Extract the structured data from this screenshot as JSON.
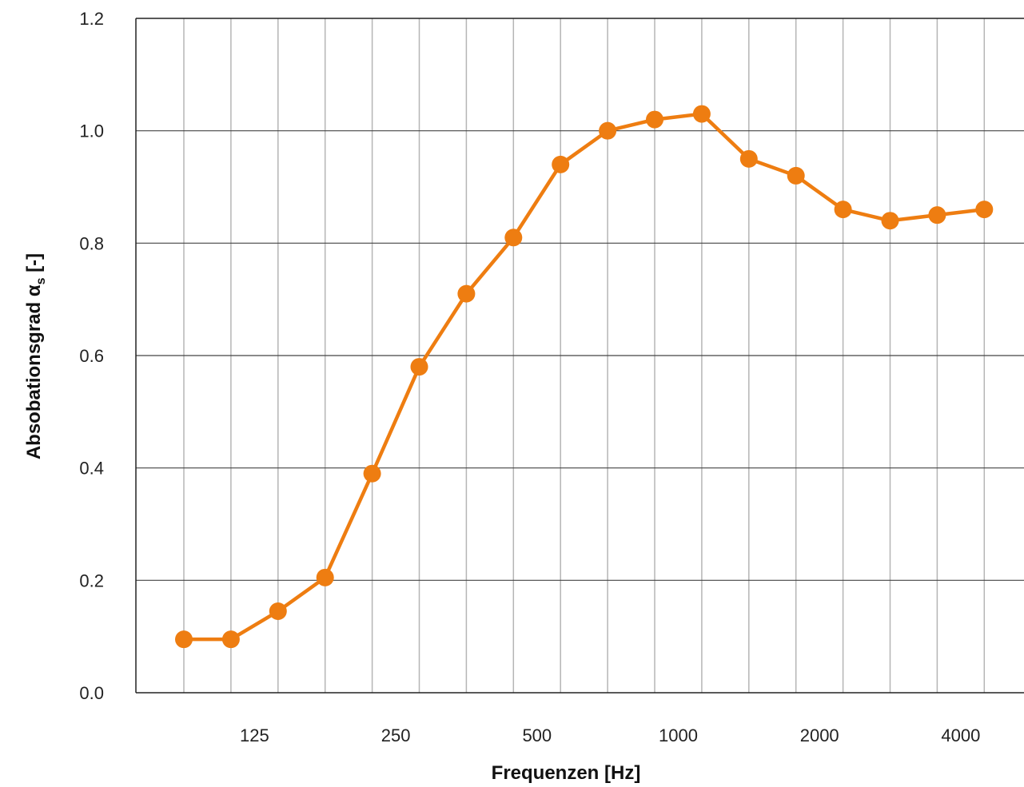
{
  "chart_data": {
    "type": "line",
    "title": "",
    "xlabel": "Frequenzen [Hz]",
    "ylabel_main": "Absobationsgrad α",
    "ylabel_sub": "s",
    "ylabel_suffix": " [-]",
    "x": [
      100,
      125,
      160,
      200,
      250,
      315,
      400,
      500,
      630,
      800,
      1000,
      1250,
      1600,
      2000,
      2500,
      3150,
      4000,
      5000
    ],
    "x_tick_labels": [
      "125",
      "250",
      "500",
      "1000",
      "2000",
      "4000"
    ],
    "y_tick_labels": [
      "0.0",
      "0.2",
      "0.4",
      "0.6",
      "0.8",
      "1.0",
      "1.2"
    ],
    "ylim": [
      0,
      1.2
    ],
    "grid": true,
    "legend": "none",
    "series": [
      {
        "values": [
          0.095,
          0.095,
          0.145,
          0.205,
          0.39,
          0.58,
          0.71,
          0.81,
          0.94,
          1.0,
          1.02,
          1.03,
          0.95,
          0.92,
          0.86,
          0.84,
          0.85,
          0.86
        ]
      }
    ],
    "colors": {
      "series": "#EE7D11",
      "grid_vertical": "#b5b5b5",
      "grid_horizontal": "#444444"
    }
  }
}
